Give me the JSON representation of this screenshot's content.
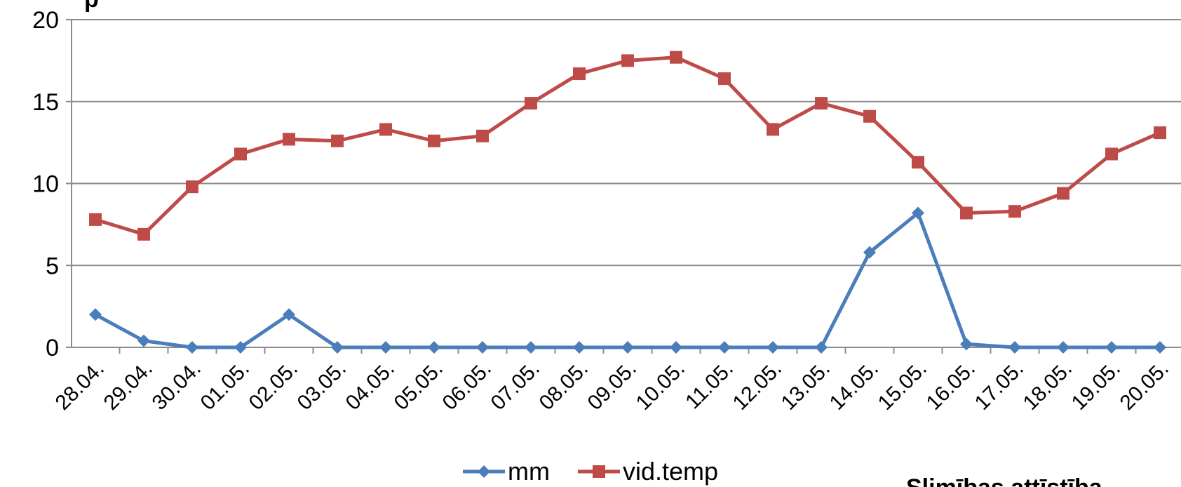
{
  "chart_data": {
    "type": "line",
    "categories": [
      "28.04.",
      "29.04.",
      "30.04.",
      "01.05.",
      "02.05.",
      "03.05.",
      "04.05.",
      "05.05.",
      "06.05.",
      "07.05.",
      "08.05.",
      "09.05.",
      "10.05.",
      "11.05.",
      "12.05.",
      "13.05.",
      "14.05.",
      "15.05.",
      "16.05.",
      "17.05.",
      "18.05.",
      "19.05.",
      "20.05."
    ],
    "series": [
      {
        "name": "mm",
        "color": "#4a7ebb",
        "marker": "diamond",
        "values": [
          2,
          0.4,
          0,
          0,
          2,
          0,
          0,
          0,
          0,
          0,
          0,
          0,
          0,
          0,
          0,
          0,
          5.8,
          8.2,
          0.2,
          0,
          0,
          0,
          0
        ]
      },
      {
        "name": "vid.temp",
        "color": "#be4b48",
        "marker": "square",
        "values": [
          7.8,
          6.9,
          9.8,
          11.8,
          12.7,
          12.6,
          13.3,
          12.6,
          12.9,
          14.9,
          16.7,
          17.5,
          17.7,
          16.4,
          13.3,
          14.9,
          14.1,
          11.3,
          8.2,
          8.3,
          9.4,
          11.8,
          13.1
        ]
      }
    ],
    "ylim": [
      0,
      20
    ],
    "yticks": [
      0,
      5,
      10,
      15,
      20
    ],
    "grid": true,
    "legend": "bottom",
    "title": "",
    "xlabel": "",
    "ylabel": ""
  },
  "cropped_text": {
    "top_left": "p",
    "bottom_right": "Slimības attīstība"
  }
}
